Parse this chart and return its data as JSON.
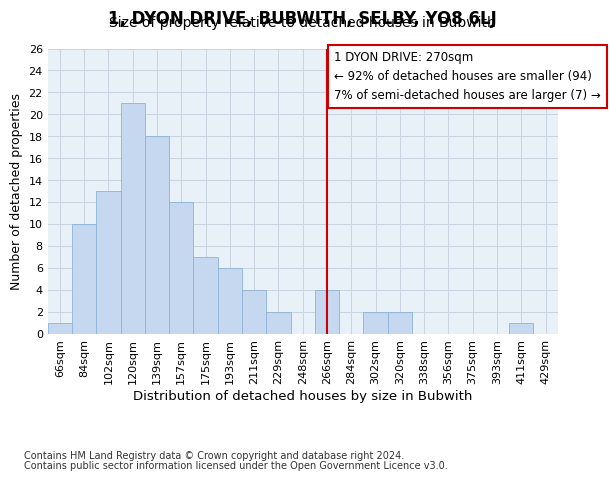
{
  "title": "1, DYON DRIVE, BUBWITH, SELBY, YO8 6LJ",
  "subtitle": "Size of property relative to detached houses in Bubwith",
  "xlabel": "Distribution of detached houses by size in Bubwith",
  "ylabel": "Number of detached properties",
  "categories": [
    "66sqm",
    "84sqm",
    "102sqm",
    "120sqm",
    "139sqm",
    "157sqm",
    "175sqm",
    "193sqm",
    "211sqm",
    "229sqm",
    "248sqm",
    "266sqm",
    "284sqm",
    "302sqm",
    "320sqm",
    "338sqm",
    "356sqm",
    "375sqm",
    "393sqm",
    "411sqm",
    "429sqm"
  ],
  "bar_values": [
    1,
    10,
    13,
    21,
    18,
    12,
    7,
    6,
    4,
    2,
    0,
    4,
    0,
    2,
    2,
    0,
    0,
    0,
    0,
    1,
    0
  ],
  "bar_color": "#c5d8f0",
  "bar_edgecolor": "#8db4d8",
  "grid_color": "#c8d4e0",
  "bg_color": "#e8f0f8",
  "vline_color": "#cc0000",
  "vline_index": 11,
  "annotation_lines": [
    "1 DYON DRIVE: 270sqm",
    "← 92% of detached houses are smaller (94)",
    "7% of semi-detached houses are larger (7) →"
  ],
  "annotation_box_edgecolor": "#cc0000",
  "ylim": [
    0,
    26
  ],
  "yticks": [
    0,
    2,
    4,
    6,
    8,
    10,
    12,
    14,
    16,
    18,
    20,
    22,
    24,
    26
  ],
  "footnote1": "Contains HM Land Registry data © Crown copyright and database right 2024.",
  "footnote2": "Contains public sector information licensed under the Open Government Licence v3.0.",
  "title_fontsize": 12,
  "subtitle_fontsize": 10,
  "xlabel_fontsize": 9.5,
  "ylabel_fontsize": 9,
  "tick_fontsize": 8,
  "annot_fontsize": 8.5
}
